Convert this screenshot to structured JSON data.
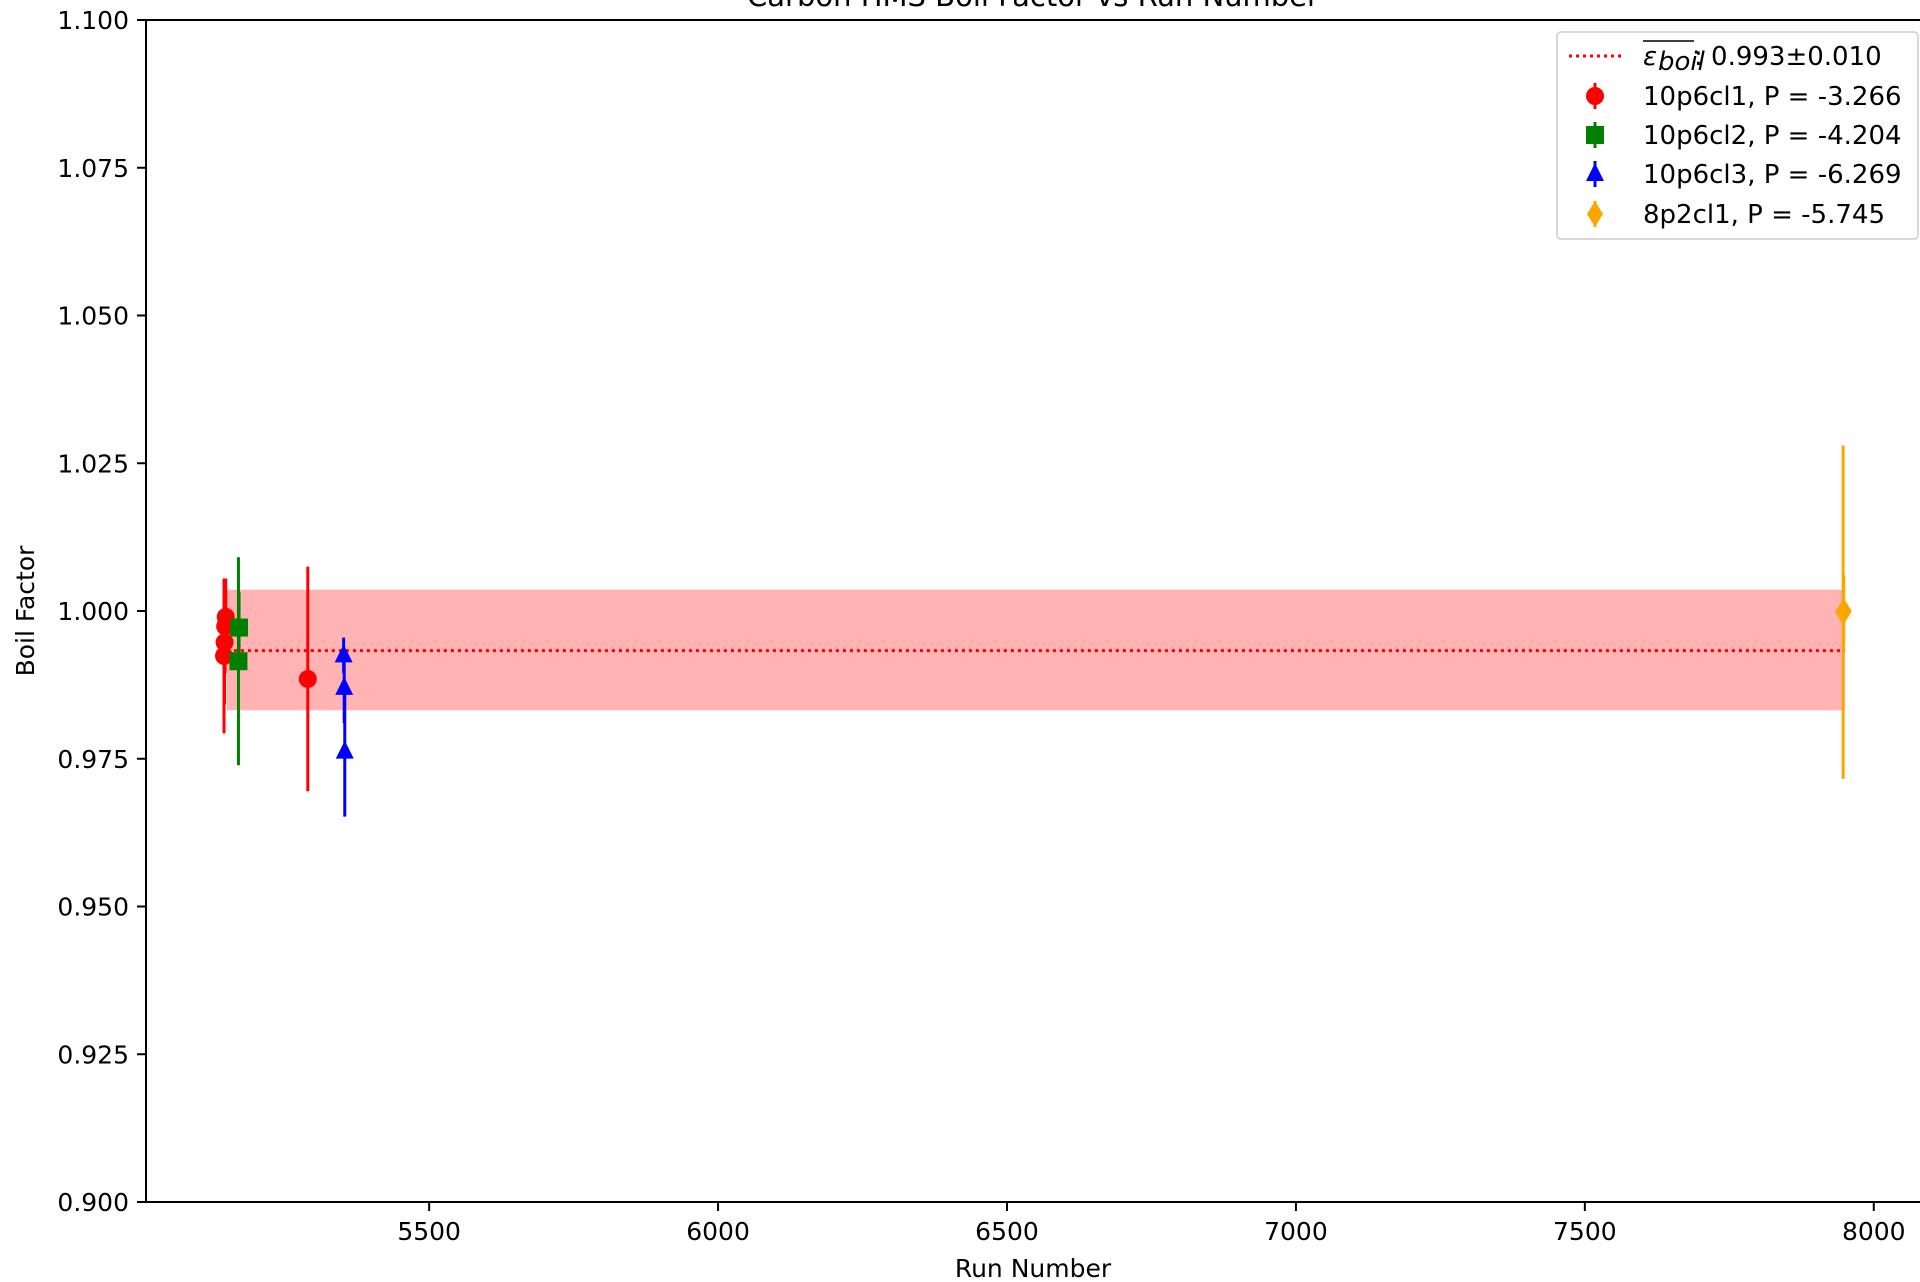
{
  "chart_data": {
    "type": "scatter",
    "title": "Carbon HMS Boil Factor vs Run Number",
    "xlabel": "Run Number",
    "ylabel": "Boil Factor",
    "xlim": [
      5010,
      8080
    ],
    "ylim": [
      0.9,
      1.1
    ],
    "x_ticks": [
      5500,
      6000,
      6500,
      7000,
      7500,
      8000
    ],
    "x_tick_labels": [
      "5500",
      "6000",
      "6500",
      "7000",
      "7500",
      "8000"
    ],
    "y_ticks": [
      0.9,
      0.925,
      0.95,
      0.975,
      1.0,
      1.025,
      1.05,
      1.075,
      1.1
    ],
    "y_tick_labels": [
      "0.900",
      "0.925",
      "0.950",
      "0.975",
      "1.000",
      "1.025",
      "1.050",
      "1.075",
      "1.100"
    ],
    "grid": false,
    "legend_position": "top-right",
    "mean": {
      "label_text": ": 0.993±0.010",
      "symbol": "ε boil (overlined)",
      "value": 0.9933,
      "band": [
        0.9832,
        1.0036
      ],
      "x_range": [
        5150,
        7950
      ],
      "color": "#ff0000",
      "band_color": "#ffb3b3"
    },
    "series": [
      {
        "name": "10p6cl1, P = -3.266",
        "color": "#ff0000",
        "marker": "circle",
        "points": [
          {
            "x": 5145,
            "y": 0.9924,
            "err": 0.0131
          },
          {
            "x": 5146,
            "y": 0.9947,
            "err": 0.0105
          },
          {
            "x": 5147,
            "y": 0.9974,
            "err": 0.008
          },
          {
            "x": 5148,
            "y": 0.999,
            "err": 0.0065
          },
          {
            "x": 5290,
            "y": 0.9885,
            "err": 0.019
          }
        ]
      },
      {
        "name": "10p6cl2, P = -4.204",
        "color": "#008000",
        "marker": "square",
        "points": [
          {
            "x": 5170,
            "y": 0.9915,
            "err": 0.0176
          },
          {
            "x": 5171,
            "y": 0.9972,
            "err": 0.006
          }
        ]
      },
      {
        "name": "10p6cl3, P = -6.269",
        "color": "#0000ff",
        "marker": "triangle",
        "points": [
          {
            "x": 5352,
            "y": 0.9925,
            "err": 0.003
          },
          {
            "x": 5353,
            "y": 0.987,
            "err": 0.006
          },
          {
            "x": 5354,
            "y": 0.9762,
            "err": 0.011
          }
        ]
      },
      {
        "name": "8p2cl1, P = -5.745",
        "color": "#ffa500",
        "marker": "diamond",
        "points": [
          {
            "x": 7947,
            "y": 0.9998,
            "err": 0.0282
          },
          {
            "x": 7948,
            "y": 1.0,
            "err": 0.006
          }
        ]
      }
    ]
  }
}
